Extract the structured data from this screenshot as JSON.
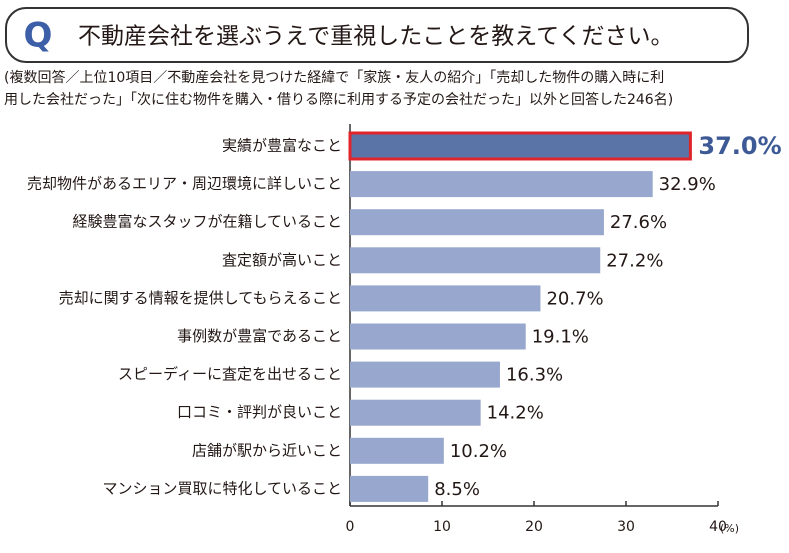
{
  "chart_data": {
    "type": "barh",
    "title_mark": "Q",
    "title": "不動産会社を選ぶうえで重視したことを教えてください。",
    "subtitle": [
      "(複数回答／上位10項目／不動産会社を見つけた経緯で「家族・友人の紹介」「売却した物件の購入時に利",
      "用した会社だった」「次に住む物件を購入・借りる際に利用する予定の会社だった」以外と回答した246名)"
    ],
    "categories": [
      "実績が豊富なこと",
      "売却物件があるエリア・周辺環境に詳しいこと",
      "経験豊富なスタッフが在籍していること",
      "査定額が高いこと",
      "売却に関する情報を提供してもらえること",
      "事例数が豊富であること",
      "スピーディーに査定を出せること",
      "口コミ・評判が良いこと",
      "店舗が駅から近いこと",
      "マンション買取に特化していること"
    ],
    "values": [
      37.0,
      32.9,
      27.6,
      27.2,
      20.7,
      19.1,
      16.3,
      14.2,
      10.2,
      8.5
    ],
    "value_labels": [
      "37.0%",
      "32.9%",
      "27.6%",
      "27.2%",
      "20.7%",
      "19.1%",
      "16.3%",
      "14.2%",
      "10.2%",
      "8.5%"
    ],
    "colors": [
      "#5b74a8",
      "#97a7cd",
      "#97a7cd",
      "#97a7cd",
      "#97a7cd",
      "#97a7cd",
      "#97a7cd",
      "#97a7cd",
      "#97a7cd",
      "#97a7cd"
    ],
    "outlines": [
      "#e0242c",
      null,
      null,
      null,
      null,
      null,
      null,
      null,
      null,
      null
    ],
    "xlim": [
      0,
      40
    ],
    "xticks": [
      0,
      10,
      20,
      30,
      40
    ],
    "x_unit": "(%)"
  }
}
